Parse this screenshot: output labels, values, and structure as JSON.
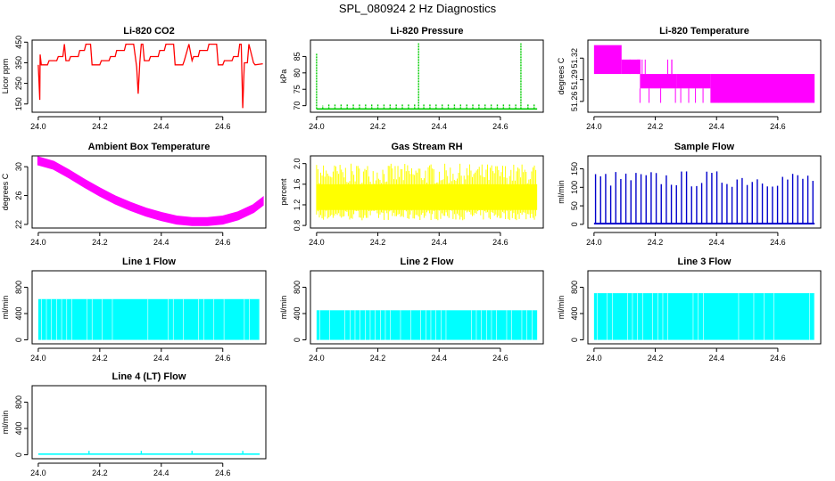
{
  "page": {
    "title": "SPL_080924  2 Hz Diagnostics"
  },
  "colors": {
    "red": "#ff0000",
    "green": "#00cc00",
    "magenta": "#ff00ff",
    "yellow": "#ffff00",
    "blue": "#0000cc",
    "cyan": "#00ffff",
    "axis": "#000000"
  },
  "chart_data": [
    {
      "type": "line",
      "title": "Li-820 CO2",
      "ylabel": "Licor ppm",
      "color": "#ff0000",
      "xlim": [
        23.98,
        24.74
      ],
      "xticks": [
        24.0,
        24.2,
        24.4,
        24.6
      ],
      "xtick_labels": [
        "24.0",
        "24.2",
        "24.4",
        "24.6"
      ],
      "ylim": [
        110,
        460
      ],
      "yticks": [
        150,
        250,
        350,
        450
      ],
      "ytick_labels": [
        "150",
        "250",
        "350",
        "450"
      ],
      "x": [
        24.0,
        24.005,
        24.006,
        24.01,
        24.03,
        24.035,
        24.06,
        24.065,
        24.08,
        24.085,
        24.09,
        24.1,
        24.105,
        24.13,
        24.135,
        24.15,
        24.155,
        24.17,
        24.175,
        24.2,
        24.205,
        24.23,
        24.235,
        24.25,
        24.255,
        24.28,
        24.285,
        24.31,
        24.32,
        24.325,
        24.33,
        24.335,
        24.34,
        24.345,
        24.36,
        24.365,
        24.39,
        24.395,
        24.41,
        24.415,
        24.44,
        24.445,
        24.47,
        24.475,
        24.49,
        24.5,
        24.505,
        24.52,
        24.525,
        24.55,
        24.555,
        24.58,
        24.585,
        24.6,
        24.605,
        24.63,
        24.635,
        24.65,
        24.655,
        24.66,
        24.665,
        24.67,
        24.68,
        24.685,
        24.7,
        24.705,
        24.73
      ],
      "y": [
        340,
        170,
        390,
        340,
        340,
        360,
        360,
        380,
        380,
        440,
        360,
        360,
        380,
        380,
        410,
        410,
        440,
        440,
        340,
        340,
        360,
        360,
        380,
        380,
        410,
        410,
        440,
        440,
        330,
        200,
        350,
        440,
        440,
        360,
        360,
        380,
        380,
        410,
        410,
        440,
        440,
        340,
        340,
        360,
        440,
        360,
        380,
        380,
        410,
        410,
        440,
        440,
        340,
        340,
        360,
        360,
        380,
        380,
        440,
        440,
        130,
        350,
        350,
        440,
        350,
        340,
        345
      ]
    },
    {
      "type": "line",
      "title": "Li-820 Pressure",
      "ylabel": "kPa",
      "color": "#00cc00",
      "xlim": [
        23.98,
        24.74
      ],
      "xticks": [
        24.0,
        24.2,
        24.4,
        24.6
      ],
      "xtick_labels": [
        "24.0",
        "24.2",
        "24.4",
        "24.6"
      ],
      "ylim": [
        68,
        90
      ],
      "yticks": [
        70,
        75,
        80,
        85
      ],
      "ytick_labels": [
        "70",
        "75",
        "80",
        "85"
      ],
      "spikes_x": [
        24.0,
        24.02,
        24.04,
        24.06,
        24.08,
        24.1,
        24.12,
        24.14,
        24.16,
        24.18,
        24.2,
        24.22,
        24.24,
        24.26,
        24.28,
        24.3,
        24.32,
        24.333,
        24.35,
        24.37,
        24.39,
        24.41,
        24.43,
        24.45,
        24.47,
        24.49,
        24.51,
        24.53,
        24.55,
        24.57,
        24.59,
        24.61,
        24.63,
        24.65,
        24.667,
        24.69,
        24.71
      ],
      "spikes_y": [
        86,
        70,
        70.5,
        70.5,
        70.5,
        70.5,
        70.5,
        70.5,
        70.5,
        70.5,
        70.5,
        70.5,
        70.5,
        70.5,
        70.5,
        70.5,
        70.5,
        89,
        70.5,
        70.5,
        70.5,
        70.5,
        70.5,
        70.5,
        70.5,
        70.5,
        70.5,
        70.5,
        70.5,
        70.5,
        70.5,
        70.5,
        70.5,
        70.5,
        89,
        70.5,
        70.5
      ],
      "baseline": 69
    },
    {
      "type": "line",
      "title": "Li-820 Temperature",
      "ylabel": "degrees C",
      "color": "#ff00ff",
      "xlim": [
        23.98,
        24.74
      ],
      "xticks": [
        24.0,
        24.2,
        24.4,
        24.6
      ],
      "xtick_labels": [
        "24.0",
        "24.2",
        "24.4",
        "24.6"
      ],
      "ylim": [
        51.245,
        51.345
      ],
      "yticks": [
        51.26,
        51.29,
        51.32
      ],
      "ytick_labels": [
        "51.26",
        "51.29",
        "51.32"
      ],
      "bands": [
        {
          "x0": 24.0,
          "x1": 24.09,
          "lo": 51.298,
          "hi": 51.338
        },
        {
          "x0": 24.09,
          "x1": 24.15,
          "lo": 51.298,
          "hi": 51.318
        },
        {
          "x0": 24.15,
          "x1": 24.27,
          "lo": 51.278,
          "hi": 51.298
        },
        {
          "x0": 24.27,
          "x1": 24.38,
          "lo": 51.278,
          "hi": 51.298
        },
        {
          "x0": 24.38,
          "x1": 24.72,
          "lo": 51.258,
          "hi": 51.298
        }
      ]
    },
    {
      "type": "line",
      "title": "Ambient Box Temperature",
      "ylabel": "degrees C",
      "color": "#ff00ff",
      "xlim": [
        23.98,
        24.74
      ],
      "xticks": [
        24.0,
        24.2,
        24.4,
        24.6
      ],
      "xtick_labels": [
        "24.0",
        "24.2",
        "24.4",
        "24.6"
      ],
      "ylim": [
        21.5,
        31.5
      ],
      "yticks": [
        22,
        26,
        30
      ],
      "ytick_labels": [
        "22",
        "26",
        "30"
      ],
      "x": [
        24.0,
        24.05,
        24.1,
        24.15,
        24.2,
        24.25,
        24.3,
        24.35,
        24.4,
        24.45,
        24.5,
        24.55,
        24.6,
        24.65,
        24.7,
        24.73
      ],
      "y": [
        30.8,
        30.2,
        29.0,
        27.7,
        26.5,
        25.4,
        24.5,
        23.7,
        23.1,
        22.6,
        22.4,
        22.4,
        22.6,
        23.2,
        24.2,
        25.2
      ],
      "band": 0.5
    },
    {
      "type": "line",
      "title": "Gas Stream RH",
      "ylabel": "percent",
      "color": "#ffff00",
      "xlim": [
        23.98,
        24.74
      ],
      "xticks": [
        24.0,
        24.2,
        24.4,
        24.6
      ],
      "xtick_labels": [
        "24.0",
        "24.2",
        "24.4",
        "24.6"
      ],
      "ylim": [
        0.75,
        2.15
      ],
      "yticks": [
        0.8,
        1.2,
        1.6,
        2.0
      ],
      "ytick_labels": [
        "0.8",
        "1.2",
        "1.6",
        "2.0"
      ],
      "x_start": 24.0,
      "x_end": 24.72,
      "lo": 1.1,
      "hi": 1.6,
      "peak": 2.0,
      "dip": 0.9
    },
    {
      "type": "line",
      "title": "Sample Flow",
      "ylabel": "ml/min",
      "color": "#0000cc",
      "xlim": [
        23.98,
        24.74
      ],
      "xticks": [
        24.0,
        24.2,
        24.4,
        24.6
      ],
      "xtick_labels": [
        "24.0",
        "24.2",
        "24.4",
        "24.6"
      ],
      "ylim": [
        -10,
        185
      ],
      "yticks": [
        0,
        50,
        100,
        150
      ],
      "ytick_labels": [
        "0",
        "50",
        "100",
        "150"
      ],
      "baseline": 2,
      "spike_lo": 100,
      "spike_hi": 145,
      "x_start": 24.0,
      "x_end": 24.72
    },
    {
      "type": "bar",
      "title": "Line 1 Flow",
      "ylabel": "ml/min",
      "color": "#00ffff",
      "xlim": [
        23.98,
        24.74
      ],
      "xticks": [
        24.0,
        24.2,
        24.4,
        24.6
      ],
      "xtick_labels": [
        "24.0",
        "24.2",
        "24.4",
        "24.6"
      ],
      "ylim": [
        -60,
        1050
      ],
      "yticks": [
        0,
        400,
        800
      ],
      "ytick_labels": [
        "0",
        "400",
        "800"
      ],
      "x_start": 24.0,
      "x_end": 24.72,
      "level": 620
    },
    {
      "type": "bar",
      "title": "Line 2 Flow",
      "ylabel": "ml/min",
      "color": "#00ffff",
      "xlim": [
        23.98,
        24.74
      ],
      "xticks": [
        24.0,
        24.2,
        24.4,
        24.6
      ],
      "xtick_labels": [
        "24.0",
        "24.2",
        "24.4",
        "24.6"
      ],
      "ylim": [
        -60,
        1050
      ],
      "yticks": [
        0,
        400,
        800
      ],
      "ytick_labels": [
        "0",
        "400",
        "800"
      ],
      "x_start": 24.0,
      "x_end": 24.72,
      "level": 450
    },
    {
      "type": "bar",
      "title": "Line 3 Flow",
      "ylabel": "ml/min",
      "color": "#00ffff",
      "xlim": [
        23.98,
        24.74
      ],
      "xticks": [
        24.0,
        24.2,
        24.4,
        24.6
      ],
      "xtick_labels": [
        "24.0",
        "24.2",
        "24.4",
        "24.6"
      ],
      "ylim": [
        -60,
        1050
      ],
      "yticks": [
        0,
        400,
        800
      ],
      "ytick_labels": [
        "0",
        "400",
        "800"
      ],
      "x_start": 24.0,
      "x_end": 24.72,
      "level": 710
    },
    {
      "type": "line",
      "title": "Line 4 (LT) Flow",
      "ylabel": "ml/min",
      "color": "#00ffff",
      "xlim": [
        23.98,
        24.74
      ],
      "xticks": [
        24.0,
        24.2,
        24.4,
        24.6
      ],
      "xtick_labels": [
        "24.0",
        "24.2",
        "24.4",
        "24.6"
      ],
      "ylim": [
        -60,
        1050
      ],
      "yticks": [
        0,
        400,
        800
      ],
      "ytick_labels": [
        "0",
        "400",
        "800"
      ],
      "x_start": 24.0,
      "x_end": 24.72,
      "level": 10,
      "spikes_x": [
        24.165,
        24.335,
        24.5,
        24.665
      ],
      "spike_y": 60
    }
  ]
}
